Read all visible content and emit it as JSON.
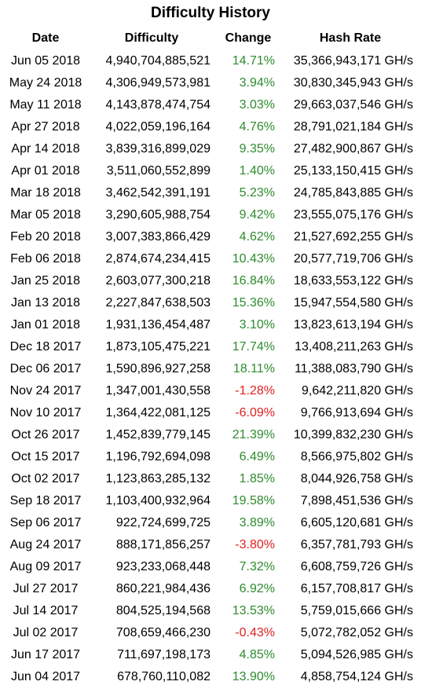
{
  "title": "Difficulty History",
  "colors": {
    "positive": "#2e8b2e",
    "negative": "#e02020"
  },
  "headers": {
    "date": "Date",
    "difficulty": "Difficulty",
    "change": "Change",
    "hash_rate": "Hash Rate"
  },
  "rows": [
    {
      "date": "Jun 05 2018",
      "difficulty": "4,940,704,885,521",
      "change": "14.71%",
      "hash_rate": "35,366,943,171 GH/s"
    },
    {
      "date": "May 24 2018",
      "difficulty": "4,306,949,573,981",
      "change": "3.94%",
      "hash_rate": "30,830,345,943 GH/s"
    },
    {
      "date": "May 11 2018",
      "difficulty": "4,143,878,474,754",
      "change": "3.03%",
      "hash_rate": "29,663,037,546 GH/s"
    },
    {
      "date": "Apr 27 2018",
      "difficulty": "4,022,059,196,164",
      "change": "4.76%",
      "hash_rate": "28,791,021,184 GH/s"
    },
    {
      "date": "Apr 14 2018",
      "difficulty": "3,839,316,899,029",
      "change": "9.35%",
      "hash_rate": "27,482,900,867 GH/s"
    },
    {
      "date": "Apr 01 2018",
      "difficulty": "3,511,060,552,899",
      "change": "1.40%",
      "hash_rate": "25,133,150,415 GH/s"
    },
    {
      "date": "Mar 18 2018",
      "difficulty": "3,462,542,391,191",
      "change": "5.23%",
      "hash_rate": "24,785,843,885 GH/s"
    },
    {
      "date": "Mar 05 2018",
      "difficulty": "3,290,605,988,754",
      "change": "9.42%",
      "hash_rate": "23,555,075,176 GH/s"
    },
    {
      "date": "Feb 20 2018",
      "difficulty": "3,007,383,866,429",
      "change": "4.62%",
      "hash_rate": "21,527,692,255 GH/s"
    },
    {
      "date": "Feb 06 2018",
      "difficulty": "2,874,674,234,415",
      "change": "10.43%",
      "hash_rate": "20,577,719,706 GH/s"
    },
    {
      "date": "Jan 25 2018",
      "difficulty": "2,603,077,300,218",
      "change": "16.84%",
      "hash_rate": "18,633,553,122 GH/s"
    },
    {
      "date": "Jan 13 2018",
      "difficulty": "2,227,847,638,503",
      "change": "15.36%",
      "hash_rate": "15,947,554,580 GH/s"
    },
    {
      "date": "Jan 01 2018",
      "difficulty": "1,931,136,454,487",
      "change": "3.10%",
      "hash_rate": "13,823,613,194 GH/s"
    },
    {
      "date": "Dec 18 2017",
      "difficulty": "1,873,105,475,221",
      "change": "17.74%",
      "hash_rate": "13,408,211,263 GH/s"
    },
    {
      "date": "Dec 06 2017",
      "difficulty": "1,590,896,927,258",
      "change": "18.11%",
      "hash_rate": "11,388,083,790 GH/s"
    },
    {
      "date": "Nov 24 2017",
      "difficulty": "1,347,001,430,558",
      "change": "-1.28%",
      "hash_rate": "9,642,211,820 GH/s"
    },
    {
      "date": "Nov 10 2017",
      "difficulty": "1,364,422,081,125",
      "change": "-6.09%",
      "hash_rate": "9,766,913,694 GH/s"
    },
    {
      "date": "Oct 26 2017",
      "difficulty": "1,452,839,779,145",
      "change": "21.39%",
      "hash_rate": "10,399,832,230 GH/s"
    },
    {
      "date": "Oct 15 2017",
      "difficulty": "1,196,792,694,098",
      "change": "6.49%",
      "hash_rate": "8,566,975,802 GH/s"
    },
    {
      "date": "Oct 02 2017",
      "difficulty": "1,123,863,285,132",
      "change": "1.85%",
      "hash_rate": "8,044,926,758 GH/s"
    },
    {
      "date": "Sep 18 2017",
      "difficulty": "1,103,400,932,964",
      "change": "19.58%",
      "hash_rate": "7,898,451,536 GH/s"
    },
    {
      "date": "Sep 06 2017",
      "difficulty": "922,724,699,725",
      "change": "3.89%",
      "hash_rate": "6,605,120,681 GH/s"
    },
    {
      "date": "Aug 24 2017",
      "difficulty": "888,171,856,257",
      "change": "-3.80%",
      "hash_rate": "6,357,781,793 GH/s"
    },
    {
      "date": "Aug 09 2017",
      "difficulty": "923,233,068,448",
      "change": "7.32%",
      "hash_rate": "6,608,759,726 GH/s"
    },
    {
      "date": "Jul 27 2017",
      "difficulty": "860,221,984,436",
      "change": "6.92%",
      "hash_rate": "6,157,708,817 GH/s"
    },
    {
      "date": "Jul 14 2017",
      "difficulty": "804,525,194,568",
      "change": "13.53%",
      "hash_rate": "5,759,015,666 GH/s"
    },
    {
      "date": "Jul 02 2017",
      "difficulty": "708,659,466,230",
      "change": "-0.43%",
      "hash_rate": "5,072,782,052 GH/s"
    },
    {
      "date": "Jun 17 2017",
      "difficulty": "711,697,198,173",
      "change": "4.85%",
      "hash_rate": "5,094,526,985 GH/s"
    },
    {
      "date": "Jun 04 2017",
      "difficulty": "678,760,110,082",
      "change": "13.90%",
      "hash_rate": "4,858,754,124 GH/s"
    }
  ]
}
